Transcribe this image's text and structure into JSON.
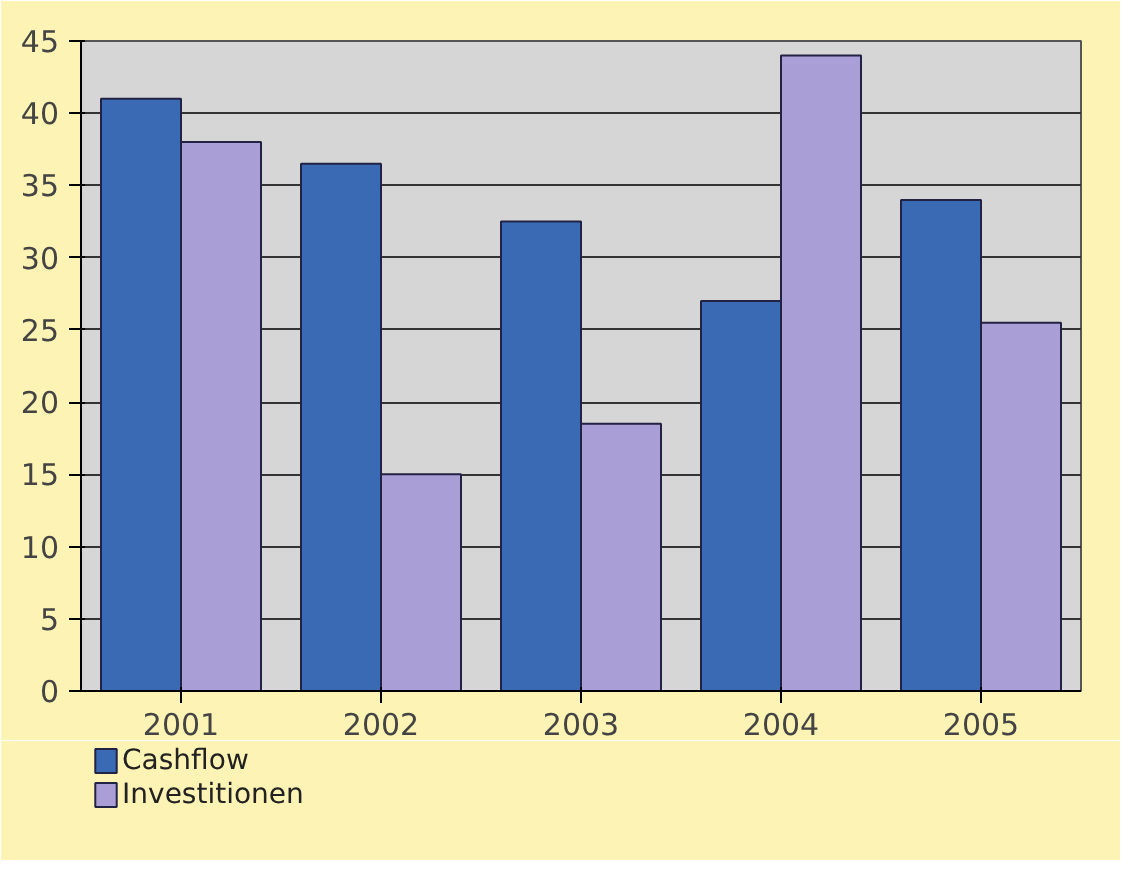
{
  "chart_data": {
    "type": "bar",
    "categories": [
      "2001",
      "2002",
      "2003",
      "2004",
      "2005"
    ],
    "series": [
      {
        "name": "Cashflow",
        "color": "#3a6ab4",
        "values": [
          41,
          36.5,
          32.5,
          27,
          34
        ]
      },
      {
        "name": "Investitionen",
        "color": "#a99fd6",
        "values": [
          38,
          15,
          18.5,
          44,
          25.5
        ]
      }
    ],
    "ylim": [
      0,
      45
    ],
    "yticks": [
      0,
      5,
      10,
      15,
      20,
      25,
      30,
      35,
      40,
      45
    ],
    "grid": "y",
    "legend": "bottom left"
  }
}
